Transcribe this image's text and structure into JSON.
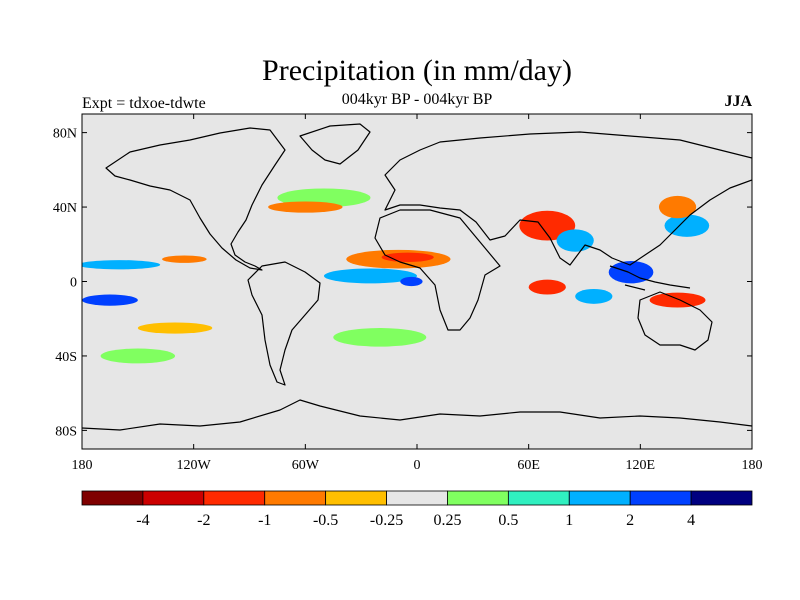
{
  "title": "Precipitation (in mm/day)",
  "subtitle_left": "Expt = tdxoe-tdwte",
  "subtitle_center": "004kyr BP - 004kyr BP",
  "subtitle_right": "JJA",
  "colors": {
    "ocean_background": "#e6e6e6",
    "coastline": "#000000"
  },
  "chart_data": {
    "type": "heatmap",
    "projection": "cylindrical-equidistant",
    "lon_range": [
      -180,
      180
    ],
    "lat_range": [
      -90,
      90
    ],
    "lat_ticks": [
      {
        "value": 80,
        "label": "80N"
      },
      {
        "value": 40,
        "label": "40N"
      },
      {
        "value": 0,
        "label": "0"
      },
      {
        "value": -40,
        "label": "40S"
      },
      {
        "value": -80,
        "label": "80S"
      }
    ],
    "lon_ticks": [
      {
        "value": -180,
        "label": "180"
      },
      {
        "value": -120,
        "label": "120W"
      },
      {
        "value": -60,
        "label": "60W"
      },
      {
        "value": 0,
        "label": "0"
      },
      {
        "value": 60,
        "label": "60E"
      },
      {
        "value": 120,
        "label": "120E"
      },
      {
        "value": 180,
        "label": "180"
      }
    ],
    "colorbar": {
      "colors": [
        "#7f0000",
        "#cc0000",
        "#ff2a00",
        "#ff7a00",
        "#ffbf00",
        "#e6e6e6",
        "#80ff60",
        "#30f0c0",
        "#00b0ff",
        "#0040ff",
        "#000080"
      ],
      "labels": [
        "-4",
        "-2",
        "-1",
        "-0.5",
        "-0.25",
        "0.25",
        "0.5",
        "1",
        "2",
        "4"
      ]
    },
    "anomaly_regions": [
      {
        "name": "sahel-dry",
        "lon": -10,
        "lat": 12,
        "rlon": 28,
        "rlat": 5,
        "color": "#ff7a00"
      },
      {
        "name": "sahel-dry-core",
        "lon": -5,
        "lat": 13,
        "rlon": 14,
        "rlat": 2.5,
        "color": "#ff2a00"
      },
      {
        "name": "atlantic-itcz-wet",
        "lon": -25,
        "lat": 3,
        "rlon": 25,
        "rlat": 4,
        "color": "#00b0ff"
      },
      {
        "name": "atlantic-itcz-core",
        "lon": -3,
        "lat": 0,
        "rlon": 6,
        "rlat": 2.5,
        "color": "#0040ff"
      },
      {
        "name": "pacific-itcz-wet",
        "lon": -160,
        "lat": 9,
        "rlon": 22,
        "rlat": 2.5,
        "color": "#00b0ff"
      },
      {
        "name": "pacific-south-wet",
        "lon": -165,
        "lat": -10,
        "rlon": 15,
        "rlat": 3,
        "color": "#0040ff"
      },
      {
        "name": "pacific-itcz-dry",
        "lon": -125,
        "lat": 12,
        "rlon": 12,
        "rlat": 2,
        "color": "#ff7a00"
      },
      {
        "name": "arabia-india-dry",
        "lon": 70,
        "lat": 30,
        "rlon": 15,
        "rlat": 8,
        "color": "#ff2a00"
      },
      {
        "name": "india-wet",
        "lon": 85,
        "lat": 22,
        "rlon": 10,
        "rlat": 6,
        "color": "#00b0ff"
      },
      {
        "name": "indian-ocean-dry",
        "lon": 70,
        "lat": -3,
        "rlon": 10,
        "rlat": 4,
        "color": "#ff2a00"
      },
      {
        "name": "indian-ocean-wet",
        "lon": 95,
        "lat": -8,
        "rlon": 10,
        "rlat": 4,
        "color": "#00b0ff"
      },
      {
        "name": "maritime-continent-wet",
        "lon": 115,
        "lat": 5,
        "rlon": 12,
        "rlat": 6,
        "color": "#0040ff"
      },
      {
        "name": "west-pacific-wet",
        "lon": 145,
        "lat": 30,
        "rlon": 12,
        "rlat": 6,
        "color": "#00b0ff"
      },
      {
        "name": "japan-dry",
        "lon": 140,
        "lat": 40,
        "rlon": 10,
        "rlat": 6,
        "color": "#ff7a00"
      },
      {
        "name": "australia-dry",
        "lon": 140,
        "lat": -10,
        "rlon": 15,
        "rlat": 4,
        "color": "#ff2a00"
      },
      {
        "name": "south-atlantic-wet",
        "lon": -20,
        "lat": -30,
        "rlon": 25,
        "rlat": 5,
        "color": "#80ff60"
      },
      {
        "name": "southern-ocean-wet",
        "lon": -150,
        "lat": -40,
        "rlon": 20,
        "rlat": 4,
        "color": "#80ff60"
      },
      {
        "name": "southern-ocean-dry",
        "lon": -130,
        "lat": -25,
        "rlon": 20,
        "rlat": 3,
        "color": "#ffbf00"
      },
      {
        "name": "north-atlantic-wet",
        "lon": -50,
        "lat": 45,
        "rlon": 25,
        "rlat": 5,
        "color": "#80ff60"
      },
      {
        "name": "north-atlantic-dry",
        "lon": -60,
        "lat": 40,
        "rlon": 20,
        "rlat": 3,
        "color": "#ff7a00"
      }
    ]
  }
}
